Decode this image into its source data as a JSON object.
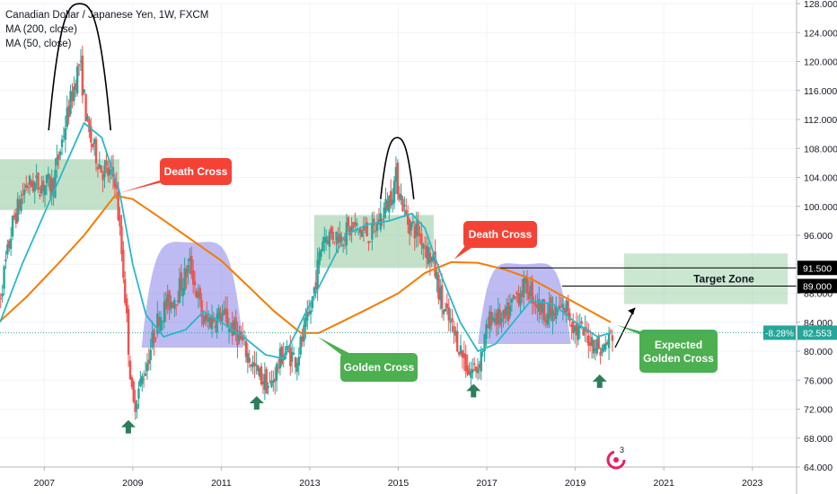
{
  "header": {
    "title": "Canadian Dollar / Japanese Yen, 1W, FXCM",
    "ma200": "MA (200, close)",
    "ma50": "MA (50, close)"
  },
  "colors": {
    "up": "#26a69a",
    "down": "#ef5350",
    "ma50": "#2bb7c9",
    "ma200": "#f57c00",
    "zone_green": "#8fc99a",
    "hs_fill": "#7b78e6",
    "callout_red": "#f44336",
    "callout_green": "#4caf50",
    "arrow_green": "#2e7d5b",
    "price_tag": "#26a69a"
  },
  "price_tag": {
    "change": "-8.28%",
    "price": "82.553"
  },
  "chart_data": {
    "type": "candlestick",
    "y_axis": {
      "min": 64,
      "max": 128,
      "ticks": [
        "128.000",
        "124.000",
        "120.000",
        "116.000",
        "112.000",
        "108.000",
        "104.000",
        "100.000",
        "96.000",
        "92.000",
        "88.000",
        "84.000",
        "80.000",
        "76.000",
        "72.000",
        "68.000",
        "64.000"
      ]
    },
    "x_axis": {
      "start": 2006.0,
      "end": 2024.0,
      "ticks": [
        "2007",
        "2009",
        "2011",
        "2013",
        "2015",
        "2017",
        "2019",
        "2021",
        "2023"
      ]
    },
    "ma50": [
      [
        2006.0,
        84
      ],
      [
        2006.5,
        92
      ],
      [
        2007.0,
        99
      ],
      [
        2007.5,
        106
      ],
      [
        2007.9,
        111.5
      ],
      [
        2008.3,
        109.5
      ],
      [
        2008.7,
        102
      ],
      [
        2009.0,
        92
      ],
      [
        2009.3,
        85
      ],
      [
        2009.7,
        82
      ],
      [
        2010.2,
        83
      ],
      [
        2010.6,
        85.5
      ],
      [
        2011.0,
        84
      ],
      [
        2011.5,
        82
      ],
      [
        2012.0,
        79.5
      ],
      [
        2012.4,
        79
      ],
      [
        2012.8,
        84
      ],
      [
        2013.3,
        90
      ],
      [
        2013.8,
        96
      ],
      [
        2014.3,
        97.5
      ],
      [
        2014.8,
        98
      ],
      [
        2015.3,
        99
      ],
      [
        2015.6,
        97
      ],
      [
        2016.0,
        90
      ],
      [
        2016.4,
        84
      ],
      [
        2016.8,
        80
      ],
      [
        2017.2,
        81
      ],
      [
        2017.6,
        84
      ],
      [
        2018.0,
        87
      ],
      [
        2018.5,
        86.5
      ],
      [
        2019.0,
        84
      ],
      [
        2019.5,
        82
      ],
      [
        2019.8,
        82.5
      ]
    ],
    "ma200": [
      [
        2005.8,
        83
      ],
      [
        2006.6,
        87.5
      ],
      [
        2007.3,
        92
      ],
      [
        2007.9,
        96
      ],
      [
        2008.6,
        101.5
      ],
      [
        2009.0,
        101
      ],
      [
        2009.6,
        98.5
      ],
      [
        2010.3,
        95.5
      ],
      [
        2011.0,
        92.5
      ],
      [
        2011.6,
        89
      ],
      [
        2012.2,
        85.5
      ],
      [
        2012.8,
        82.5
      ],
      [
        2013.2,
        82.5
      ],
      [
        2013.7,
        84
      ],
      [
        2014.3,
        85.8
      ],
      [
        2015.0,
        88
      ],
      [
        2015.6,
        90.8
      ],
      [
        2016.2,
        92.3
      ],
      [
        2016.8,
        92.2
      ],
      [
        2017.4,
        91.3
      ],
      [
        2018.0,
        90
      ],
      [
        2018.6,
        88
      ],
      [
        2019.2,
        86
      ],
      [
        2019.8,
        84
      ]
    ],
    "annotations": [
      {
        "text": "Death Cross",
        "x": 2008.65,
        "y": 101.5
      },
      {
        "text": "Death Cross",
        "x": 2016.2,
        "y": 92.3
      },
      {
        "text": "Golden Cross",
        "x": 2013.1,
        "y": 82.5
      },
      {
        "text": "Expected Golden Cross",
        "x": 2019.85,
        "y": 84
      }
    ],
    "target_zone": {
      "label": "Target Zone",
      "x_start": 2020.1,
      "x_end": 2023.8,
      "y_low": 86.5,
      "y_high": 93.5
    },
    "levels": [
      {
        "label": "91.500",
        "value": 91.5
      },
      {
        "label": "89.000",
        "value": 89.0
      }
    ],
    "pivot_zones": [
      {
        "x_start": 2005.9,
        "x_end": 2008.7,
        "y_low": 99.5,
        "y_high": 106.5
      },
      {
        "x_start": 2013.1,
        "x_end": 2015.8,
        "y_low": 91.5,
        "y_high": 98.8
      }
    ],
    "head_shoulders": [
      {
        "x_start": 2009.2,
        "x_end": 2011.5,
        "y_base": 80.5,
        "y_peak": 95
      },
      {
        "x_start": 2016.8,
        "x_end": 2018.9,
        "y_base": 81,
        "y_peak": 92
      }
    ],
    "tops": [
      {
        "x_start": 2007.1,
        "x_end": 2008.5,
        "y_base": 110.5,
        "y_peak": 126.5
      },
      {
        "x_start": 2014.6,
        "x_end": 2015.35,
        "y_base": 101,
        "y_peak": 108
      }
    ],
    "bottom_arrows": [
      {
        "x": 2008.9,
        "y": 69.5
      },
      {
        "x": 2011.8,
        "y": 72.8
      },
      {
        "x": 2016.7,
        "y": 74.5
      },
      {
        "x": 2019.55,
        "y": 75.8
      }
    ],
    "candles_guide": [
      [
        2005.9,
        84
      ],
      [
        2006.3,
        98
      ],
      [
        2006.6,
        103
      ],
      [
        2006.9,
        103
      ],
      [
        2007.2,
        103
      ],
      [
        2007.5,
        112
      ],
      [
        2007.8,
        120
      ],
      [
        2008.0,
        110
      ],
      [
        2008.3,
        105
      ],
      [
        2008.6,
        104
      ],
      [
        2008.8,
        90
      ],
      [
        2009.0,
        72
      ],
      [
        2009.3,
        78
      ],
      [
        2009.6,
        85
      ],
      [
        2010.0,
        88
      ],
      [
        2010.3,
        92
      ],
      [
        2010.6,
        84
      ],
      [
        2011.0,
        85
      ],
      [
        2011.4,
        82
      ],
      [
        2011.8,
        77
      ],
      [
        2012.1,
        75
      ],
      [
        2012.4,
        80
      ],
      [
        2012.7,
        79
      ],
      [
        2013.0,
        85
      ],
      [
        2013.3,
        96
      ],
      [
        2013.7,
        96
      ],
      [
        2014.0,
        97
      ],
      [
        2014.4,
        96
      ],
      [
        2014.8,
        101
      ],
      [
        2014.95,
        104
      ],
      [
        2015.2,
        98
      ],
      [
        2015.5,
        96
      ],
      [
        2015.8,
        92
      ],
      [
        2016.0,
        86
      ],
      [
        2016.3,
        82
      ],
      [
        2016.6,
        77
      ],
      [
        2016.8,
        78
      ],
      [
        2017.1,
        85
      ],
      [
        2017.4,
        84
      ],
      [
        2017.7,
        88
      ],
      [
        2017.9,
        89
      ],
      [
        2018.2,
        86
      ],
      [
        2018.5,
        85
      ],
      [
        2018.8,
        86
      ],
      [
        2019.0,
        83
      ],
      [
        2019.3,
        82
      ],
      [
        2019.6,
        80
      ],
      [
        2019.85,
        82.5
      ]
    ]
  }
}
